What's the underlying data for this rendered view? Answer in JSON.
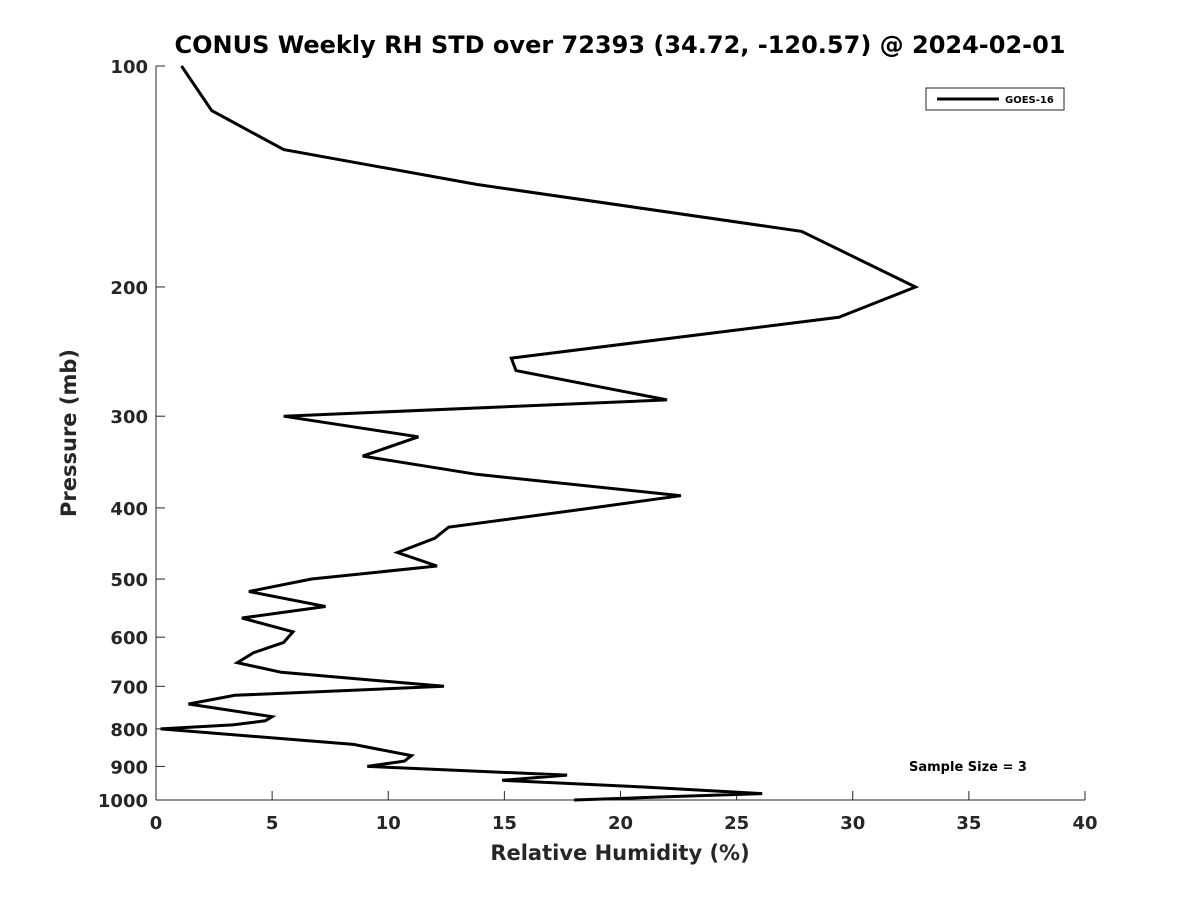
{
  "chart_data": {
    "type": "line",
    "title": "CONUS Weekly RH STD over 72393 (34.72, -120.57) @ 2024-02-01",
    "xlabel": "Relative Humidity (%)",
    "ylabel": "Pressure (mb)",
    "xlim": [
      0,
      40
    ],
    "ylim": [
      100,
      1000
    ],
    "yscale": "log",
    "y_reversed": true,
    "xticks": [
      0,
      5,
      10,
      15,
      20,
      25,
      30,
      35,
      40
    ],
    "yticks": [
      100,
      200,
      300,
      400,
      500,
      600,
      700,
      800,
      900,
      1000
    ],
    "grid": false,
    "legend_position": "top-right",
    "annotation": "Sample Size = 3",
    "series": [
      {
        "name": "GOES-16",
        "color": "#000000",
        "x": [
          1.1,
          2.4,
          5.5,
          13.8,
          27.8,
          32.7,
          29.4,
          15.3,
          15.5,
          22.0,
          5.5,
          11.3,
          8.9,
          13.8,
          22.6,
          18.8,
          12.6,
          12.0,
          10.4,
          12.1,
          6.7,
          4.0,
          7.3,
          3.7,
          5.9,
          5.5,
          4.2,
          3.5,
          5.4,
          12.4,
          3.4,
          1.4,
          5.0,
          4.7,
          3.3,
          0.2,
          8.5,
          11.0,
          10.7,
          9.1,
          17.7,
          14.9,
          21.0,
          26.1,
          22.0,
          18.0
        ],
        "y": [
          100,
          115,
          130,
          145,
          168,
          200,
          220,
          250,
          260,
          285,
          300,
          320,
          340,
          360,
          385,
          400,
          425,
          440,
          460,
          480,
          500,
          520,
          545,
          565,
          590,
          610,
          630,
          650,
          670,
          700,
          720,
          740,
          770,
          780,
          790,
          800,
          840,
          870,
          885,
          900,
          925,
          940,
          960,
          980,
          990,
          1000
        ]
      }
    ]
  }
}
